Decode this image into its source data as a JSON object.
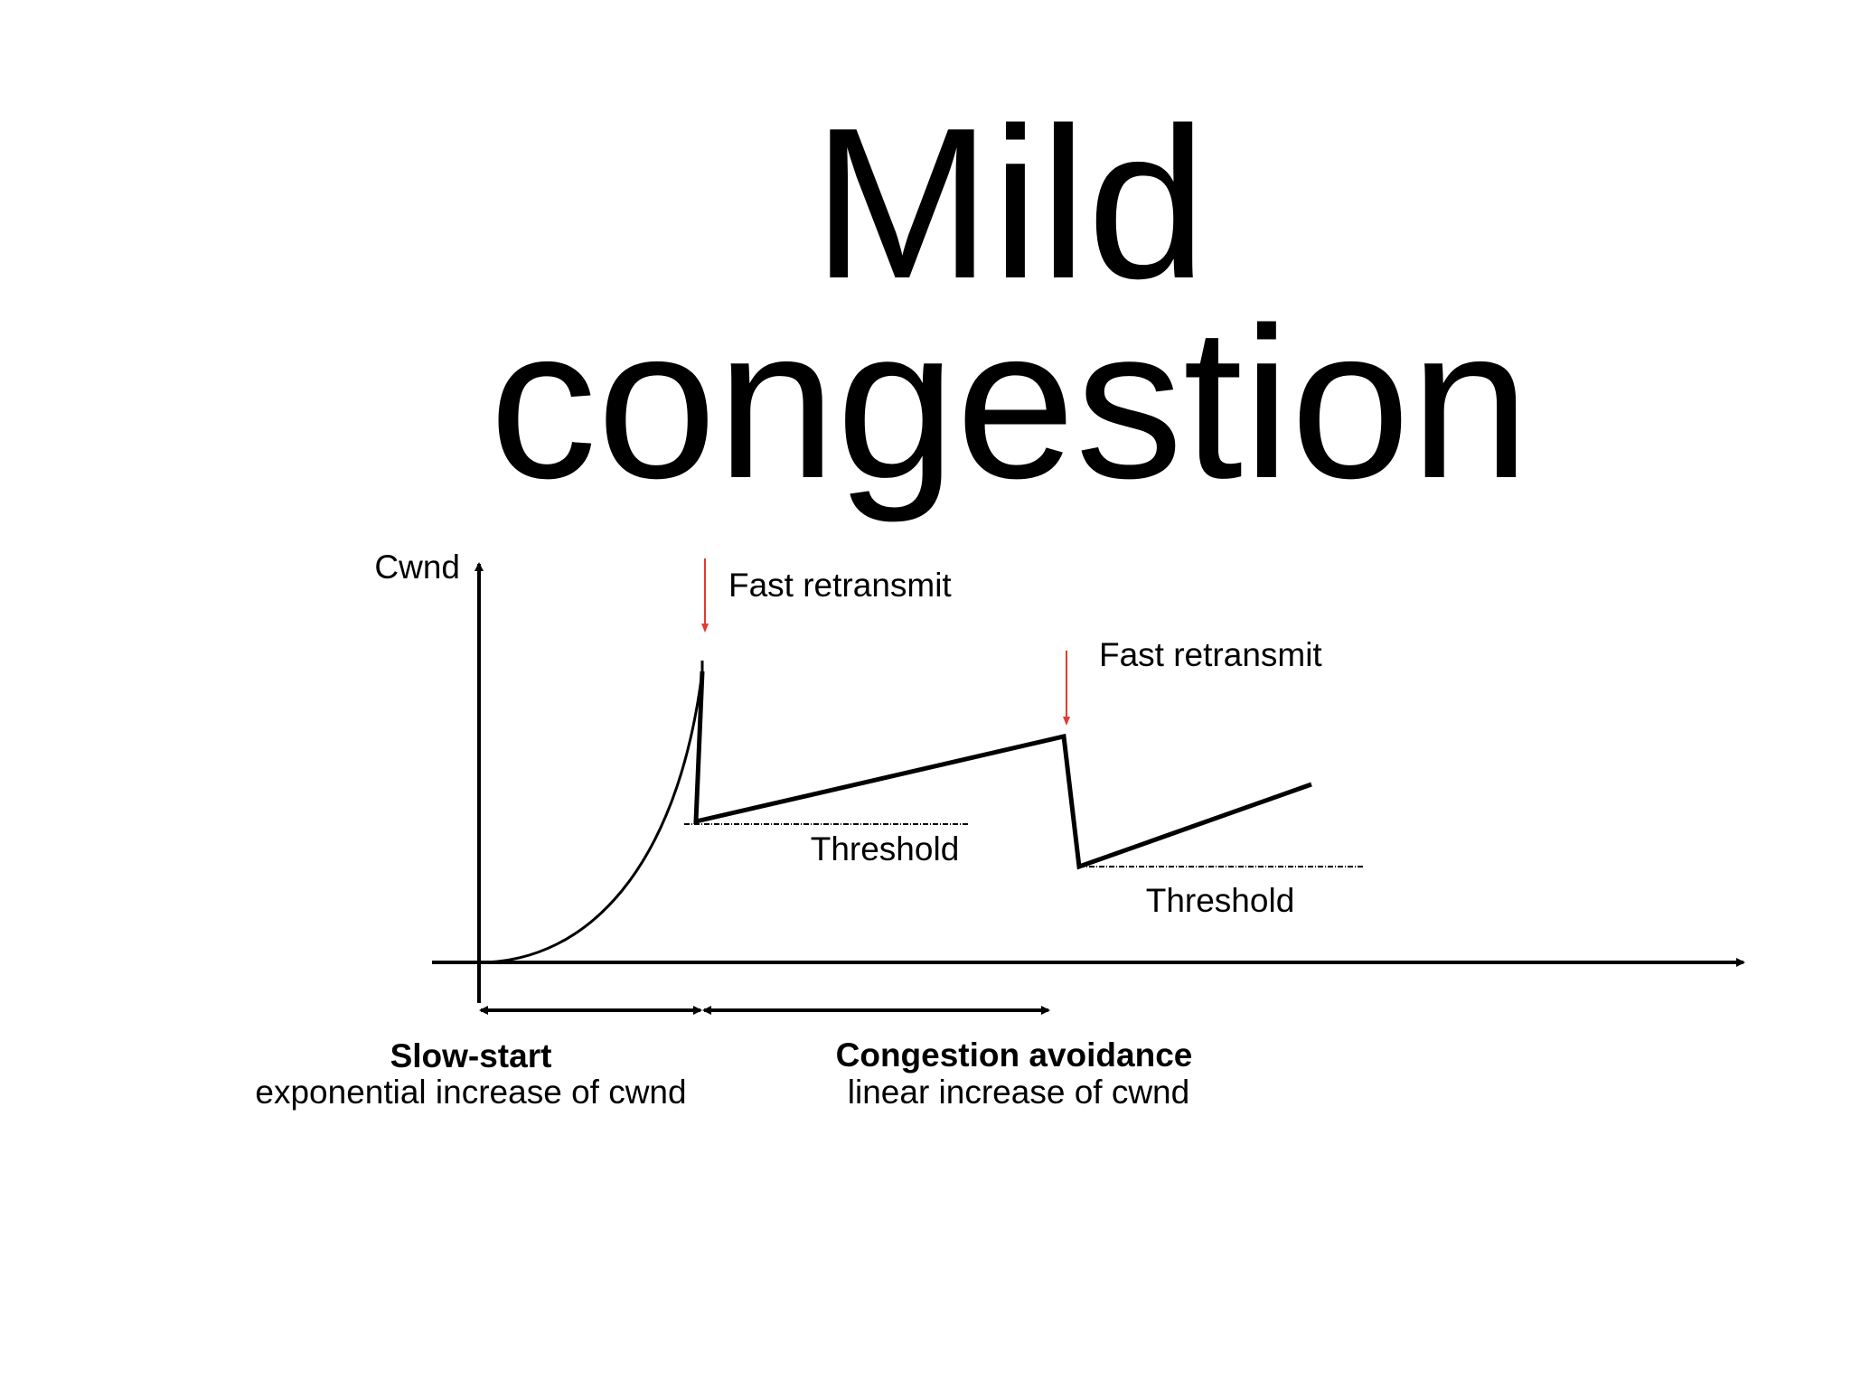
{
  "title": [
    "Mild",
    "congestion"
  ],
  "y_axis_label": "Cwnd",
  "annotations": [
    "Fast retransmit",
    "Fast retransmit"
  ],
  "thresholds": [
    "Threshold",
    "Threshold"
  ],
  "phases": [
    {
      "name": "Slow-start",
      "description": "exponential increase of cwnd"
    },
    {
      "name": "Congestion avoidance",
      "description": "linear increase of cwnd"
    }
  ]
}
